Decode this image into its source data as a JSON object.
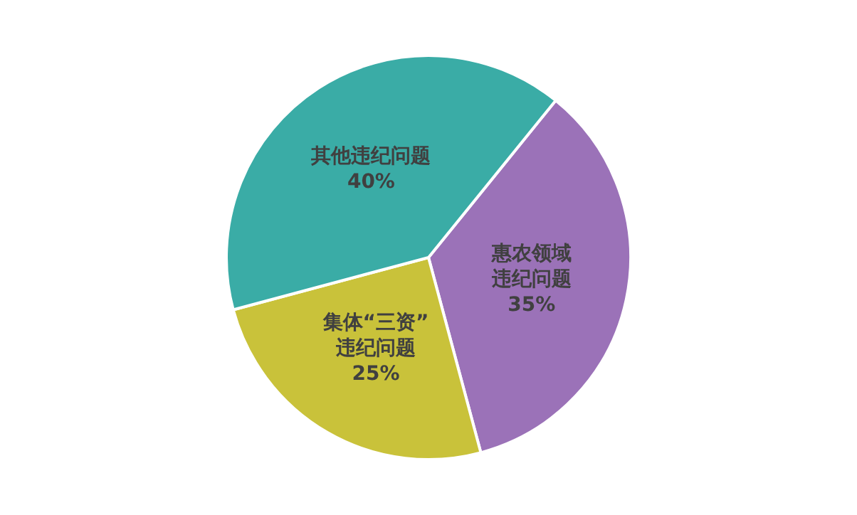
{
  "chart_data": {
    "type": "pie",
    "categories": [
      "惠农领域违纪问题",
      "集体“三资”违纪问题",
      "其他违纪问题"
    ],
    "values": [
      35,
      25,
      40
    ],
    "value_labels": [
      "35%",
      "25%",
      "40%"
    ],
    "colors": [
      "#9b72b8",
      "#c9c23a",
      "#3aaca6"
    ],
    "legend": false
  }
}
